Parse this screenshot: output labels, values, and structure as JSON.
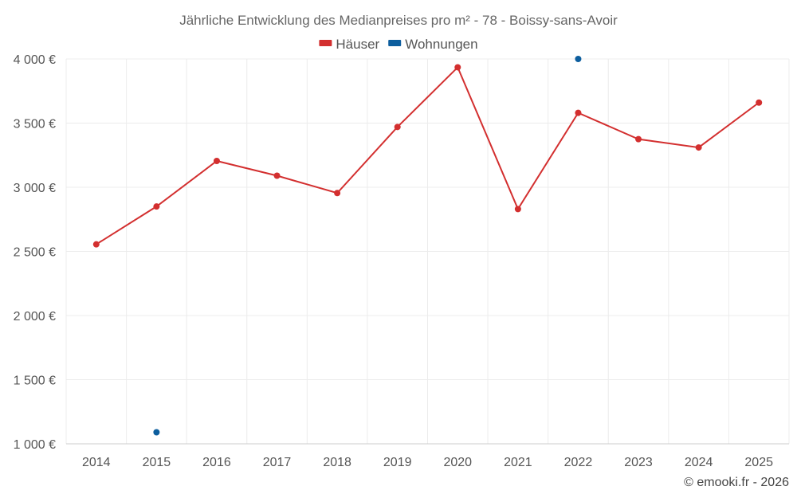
{
  "chart_data": {
    "type": "line",
    "title": "Jährliche Entwicklung des Medianpreises pro m² - 78 - Boissy-sans-Avoir",
    "x": [
      2014,
      2015,
      2016,
      2017,
      2018,
      2019,
      2020,
      2021,
      2022,
      2023,
      2024,
      2025
    ],
    "x_tick_labels": [
      "2014",
      "2015",
      "2016",
      "2017",
      "2018",
      "2019",
      "2020",
      "2021",
      "2022",
      "2023",
      "2024",
      "2025"
    ],
    "ylim": [
      1000,
      4000
    ],
    "y_ticks": [
      1000,
      1500,
      2000,
      2500,
      3000,
      3500,
      4000
    ],
    "y_tick_labels": [
      "1 000 €",
      "1 500 €",
      "2 000 €",
      "2 500 €",
      "3 000 €",
      "3 500 €",
      "4 000 €"
    ],
    "grid": true,
    "legend_position": "top-center",
    "series": [
      {
        "name": "Häuser",
        "color": "#d32f2f",
        "values": [
          2555,
          2850,
          3205,
          3090,
          2955,
          3470,
          3935,
          2830,
          3580,
          3375,
          3310,
          3660
        ]
      },
      {
        "name": "Wohnungen",
        "color": "#0d5e9e",
        "values": [
          null,
          1090,
          null,
          null,
          null,
          null,
          null,
          null,
          4000,
          null,
          null,
          null
        ]
      }
    ]
  },
  "credit": "© emooki.fr - 2026"
}
